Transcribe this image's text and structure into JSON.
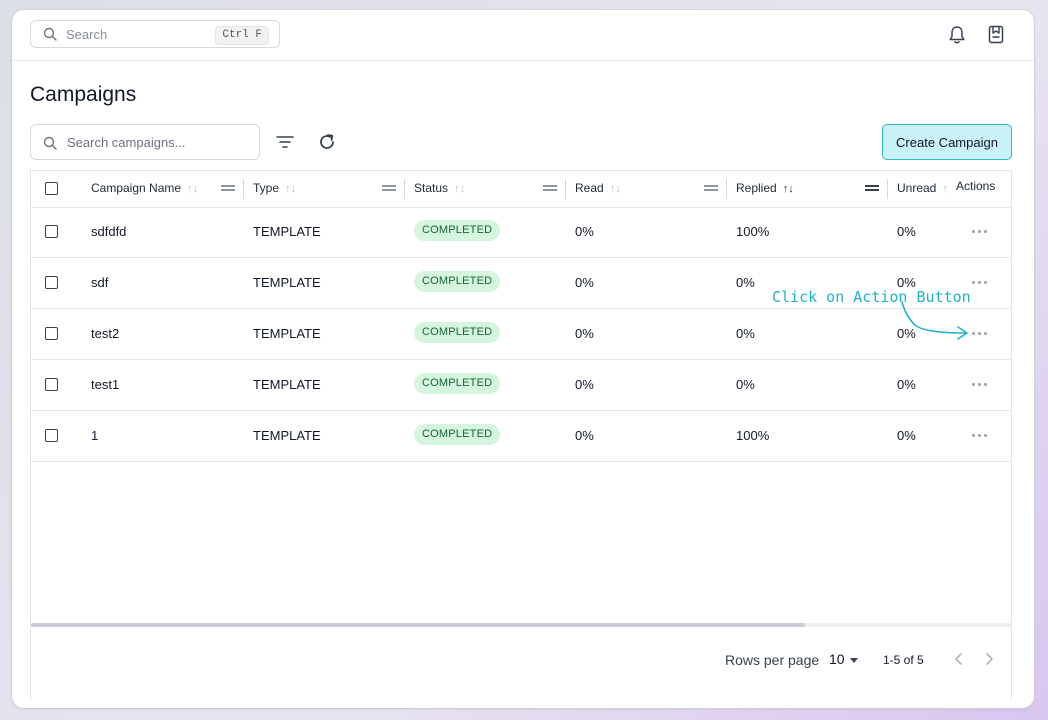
{
  "topbar": {
    "search_placeholder": "Search",
    "search_shortcut": "Ctrl F",
    "icons": [
      "bell-icon",
      "bookmark-icon"
    ]
  },
  "page": {
    "title": "Campaigns"
  },
  "toolbar": {
    "search_placeholder": "Search campaigns...",
    "icons": [
      "filter-icon",
      "refresh-icon"
    ],
    "create_label": "Create Campaign"
  },
  "table": {
    "columns": [
      {
        "label": "Campaign Name",
        "sorted": false
      },
      {
        "label": "Type",
        "sorted": false
      },
      {
        "label": "Status",
        "sorted": false
      },
      {
        "label": "Read",
        "sorted": false
      },
      {
        "label": "Replied",
        "sorted": true
      },
      {
        "label": "Unread",
        "sorted": false
      },
      {
        "label": "Actions",
        "sorted": false
      }
    ],
    "rows": [
      {
        "name": "sdfdfd",
        "type": "TEMPLATE",
        "status": "COMPLETED",
        "read": "0%",
        "replied": "100%",
        "unread": "0%"
      },
      {
        "name": "sdf",
        "type": "TEMPLATE",
        "status": "COMPLETED",
        "read": "0%",
        "replied": "0%",
        "unread": "0%"
      },
      {
        "name": "test2",
        "type": "TEMPLATE",
        "status": "COMPLETED",
        "read": "0%",
        "replied": "0%",
        "unread": "0%"
      },
      {
        "name": "test1",
        "type": "TEMPLATE",
        "status": "COMPLETED",
        "read": "0%",
        "replied": "0%",
        "unread": "0%"
      },
      {
        "name": "1",
        "type": "TEMPLATE",
        "status": "COMPLETED",
        "read": "0%",
        "replied": "100%",
        "unread": "0%"
      }
    ],
    "status_color": "#d6f5df"
  },
  "pagination": {
    "rows_per_page_label": "Rows per page",
    "rows_per_page_value": "10",
    "range": "1-5 of 5"
  },
  "annotation": {
    "text": "Click on Action Button",
    "color": "#1fb5c9"
  },
  "colors": {
    "accent": "#38b6c8",
    "accent_bg": "#c8f2f6"
  }
}
